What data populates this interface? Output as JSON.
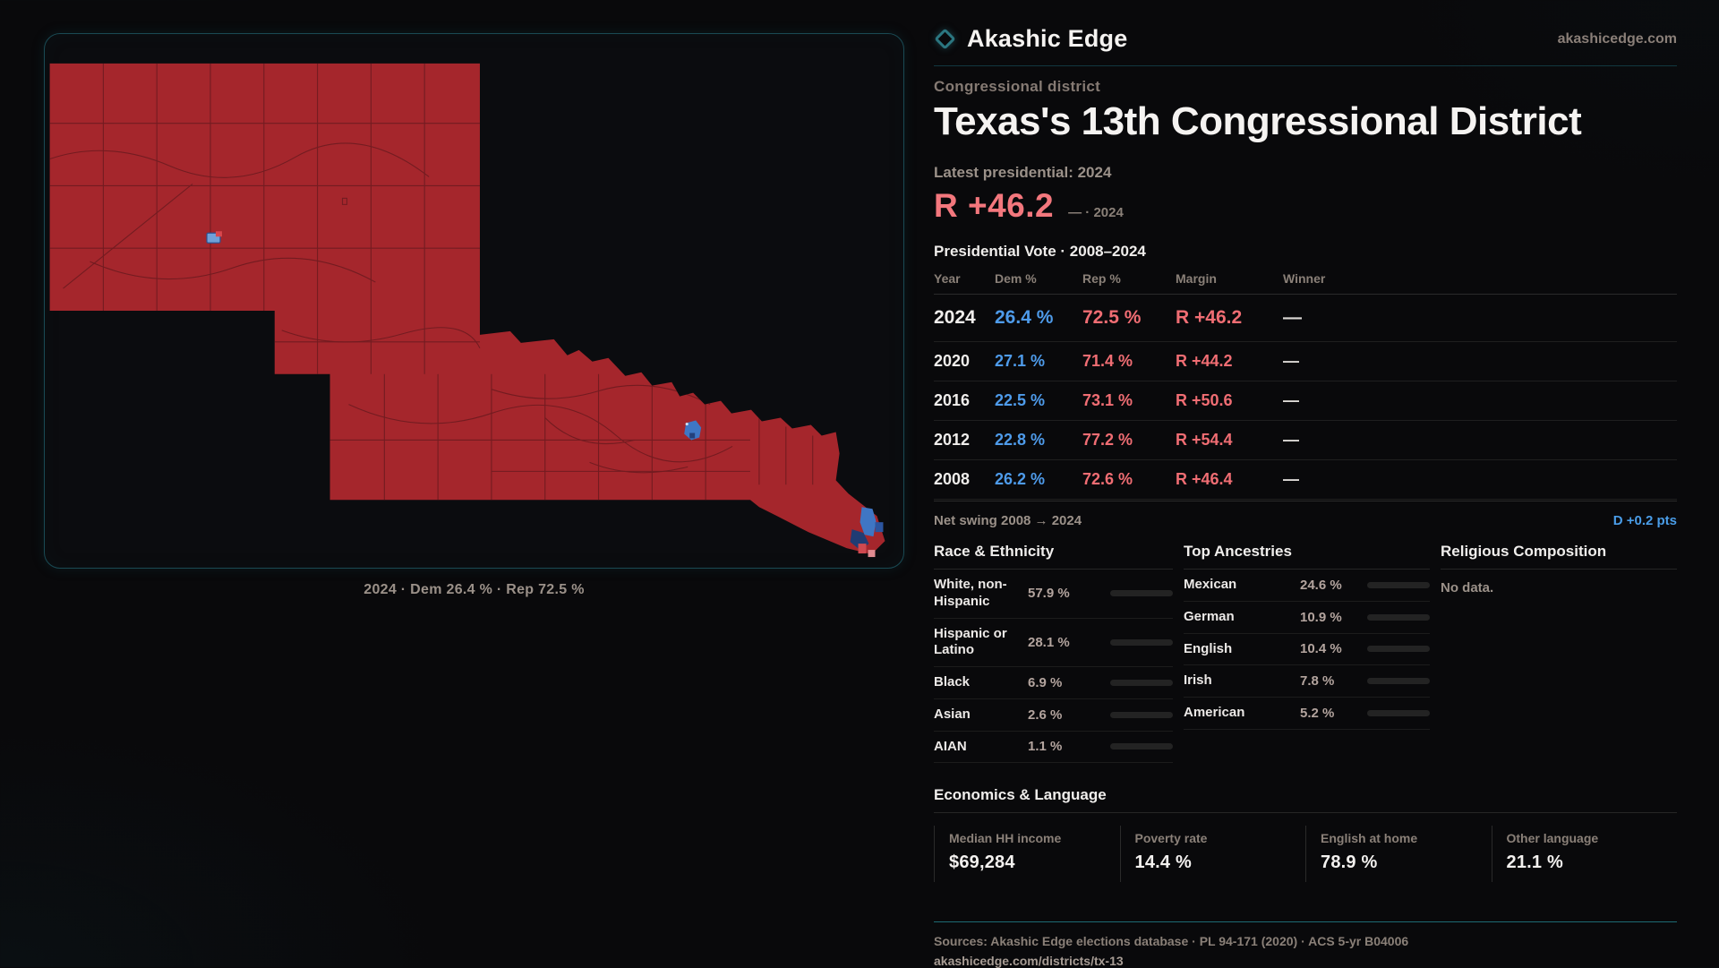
{
  "brand": {
    "name": "Akashic Edge",
    "site": "akashicedge.com"
  },
  "eyebrow": "Congressional district",
  "title": "Texas's 13th Congressional District",
  "latest": {
    "label": "Latest presidential: 2024",
    "value": "R +46.2",
    "note": "— · 2024"
  },
  "vote_table": {
    "title": "Presidential Vote · 2008–2024",
    "headers": [
      "Year",
      "Dem %",
      "Rep %",
      "Margin",
      "Winner"
    ],
    "rows": [
      {
        "year": "2024",
        "dem": "26.4 %",
        "rep": "72.5 %",
        "margin": "R +46.2",
        "winner": "—",
        "big": true
      },
      {
        "year": "2020",
        "dem": "27.1 %",
        "rep": "71.4 %",
        "margin": "R +44.2",
        "winner": "—",
        "big": false
      },
      {
        "year": "2016",
        "dem": "22.5 %",
        "rep": "73.1 %",
        "margin": "R +50.6",
        "winner": "—",
        "big": false
      },
      {
        "year": "2012",
        "dem": "22.8 %",
        "rep": "77.2 %",
        "margin": "R +54.4",
        "winner": "—",
        "big": false
      },
      {
        "year": "2008",
        "dem": "26.2 %",
        "rep": "72.6 %",
        "margin": "R +46.4",
        "winner": "—",
        "big": false
      }
    ],
    "net_swing": {
      "label": "Net swing 2008 → 2024",
      "value": "D +0.2 pts"
    }
  },
  "race": {
    "title": "Race & Ethnicity",
    "rows": [
      {
        "label": "White, non-Hispanic",
        "value": "57.9 %",
        "pct": 57.9,
        "color": "#9fb2ca"
      },
      {
        "label": "Hispanic or Latino",
        "value": "28.1 %",
        "pct": 28.1,
        "color": "#e2a31d"
      },
      {
        "label": "Black",
        "value": "6.9 %",
        "pct": 6.9,
        "color": "#8678e0"
      },
      {
        "label": "Asian",
        "value": "2.6 %",
        "pct": 2.6,
        "color": "#27a567"
      },
      {
        "label": "AIAN",
        "value": "1.1 %",
        "pct": 1.1,
        "color": "#c05a1d"
      }
    ]
  },
  "ancestries": {
    "title": "Top Ancestries",
    "rows": [
      {
        "label": "Mexican",
        "value": "24.6 %",
        "pct": 24.6,
        "color": "#e2a31d"
      },
      {
        "label": "German",
        "value": "10.9 %",
        "pct": 10.9,
        "color": "#9fb2ca"
      },
      {
        "label": "English",
        "value": "10.4 %",
        "pct": 10.4,
        "color": "#9fb2ca"
      },
      {
        "label": "Irish",
        "value": "7.8 %",
        "pct": 7.8,
        "color": "#9fb2ca"
      },
      {
        "label": "American",
        "value": "5.2 %",
        "pct": 5.2,
        "color": "#9fb2ca"
      }
    ]
  },
  "religion": {
    "title": "Religious Composition",
    "empty": "No data."
  },
  "economics": {
    "title": "Economics & Language",
    "stats": [
      {
        "label": "Median HH income",
        "value": "$69,284"
      },
      {
        "label": "Poverty rate",
        "value": "14.4 %"
      },
      {
        "label": "English at home",
        "value": "78.9 %"
      },
      {
        "label": "Other language",
        "value": "21.1 %"
      }
    ]
  },
  "map": {
    "caption": "2024 · Dem 26.4 % · Rep 72.5 %",
    "district_fill": "#a5262c",
    "boundary_color": "#6e1b20",
    "dem_city_color": "#5b8fd0",
    "panel_border": "#1a4a54"
  },
  "footer": {
    "sources": "Sources: Akashic Edge elections database · PL 94-171 (2020) · ACS 5-yr B04006",
    "link": "akashicedge.com/districts/tx-13"
  }
}
